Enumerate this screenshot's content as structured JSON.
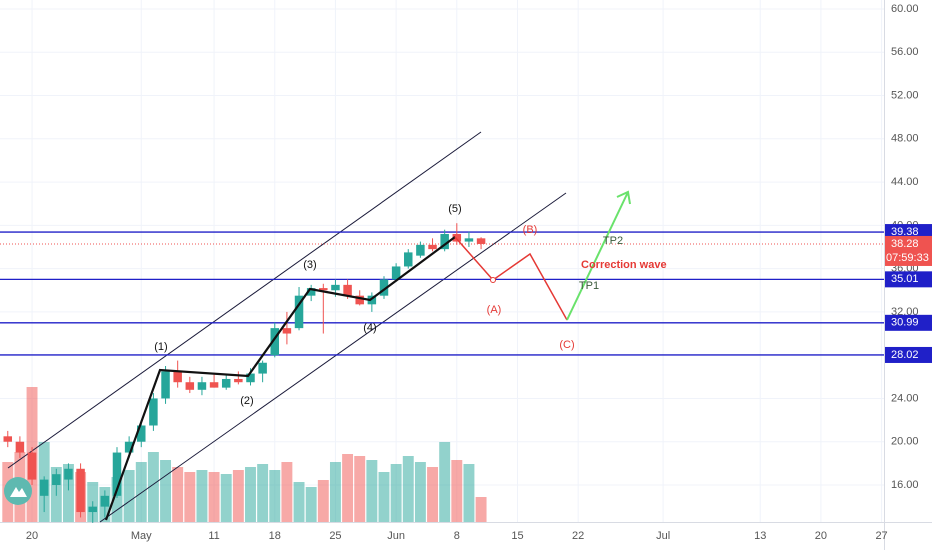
{
  "chart_data": {
    "type": "candlestick",
    "x": [
      -2,
      -1,
      0,
      1,
      2,
      3,
      4,
      5,
      6,
      7,
      8,
      9,
      10,
      11,
      12,
      13,
      14,
      15,
      16,
      17,
      18,
      19,
      20,
      21,
      22,
      23,
      24,
      25,
      26,
      27,
      28,
      29,
      30,
      31,
      32,
      33,
      34,
      35,
      36,
      37
    ],
    "series": [
      {
        "up_color": "#26a69a",
        "down_color": "#ef5350",
        "open": [
          20.5,
          20,
          19,
          15,
          16,
          16.5,
          17.5,
          13.5,
          14,
          15,
          19,
          20,
          21.5,
          24,
          26.5,
          25.5,
          24.8,
          25.5,
          25,
          25.8,
          25.5,
          26.3,
          28,
          30.5,
          30.5,
          33.5,
          34.2,
          34,
          34.5,
          33.5,
          32.7,
          33.5,
          35,
          36.2,
          37.2,
          38.2,
          37.8,
          39.2,
          38.5,
          38.8
        ],
        "high": [
          21,
          20.5,
          19.5,
          16.8,
          17.5,
          18,
          18,
          14.5,
          15.5,
          19.5,
          20.5,
          22,
          24.5,
          27,
          27.5,
          26,
          26,
          26.2,
          26.3,
          26.5,
          26.8,
          27.5,
          31,
          32,
          34.3,
          34.5,
          34.6,
          35,
          35,
          34,
          33.8,
          35.3,
          36.5,
          37.8,
          38.5,
          38.8,
          39.6,
          40.2,
          39.4,
          38.9
        ],
        "low": [
          19.5,
          18.5,
          16,
          13.5,
          15,
          15.5,
          13,
          12.5,
          13,
          14.8,
          18.5,
          19.5,
          21,
          23.5,
          25,
          24.5,
          24.3,
          25,
          24.8,
          25.3,
          25.2,
          25.5,
          27.8,
          29,
          30.3,
          33,
          30,
          33.4,
          33.2,
          32.6,
          32,
          33.2,
          34.8,
          36,
          37,
          37.6,
          37.6,
          38.2,
          38,
          37.8
        ],
        "close": [
          20,
          19,
          16.5,
          16.5,
          17,
          17.5,
          13.5,
          14,
          15,
          19,
          20,
          21.5,
          24,
          26.5,
          25.5,
          24.8,
          25.5,
          25,
          25.8,
          25.5,
          26.3,
          27.3,
          30.5,
          30,
          33.5,
          34.2,
          34,
          34.5,
          33.5,
          32.7,
          33.5,
          35,
          36.2,
          37.5,
          38.2,
          37.8,
          39.2,
          38.5,
          38.8,
          38.28
        ],
        "volume": [
          60,
          70,
          135,
          80,
          55,
          58,
          50,
          40,
          35,
          45,
          52,
          60,
          70,
          62,
          55,
          50,
          52,
          50,
          48,
          52,
          55,
          58,
          52,
          60,
          40,
          35,
          42,
          60,
          68,
          66,
          62,
          50,
          58,
          66,
          60,
          55,
          80,
          62,
          58,
          25
        ]
      }
    ],
    "xlim": [
      -2.64,
      70.2
    ],
    "ylim": [
      12.58,
      60.83
    ],
    "xticks": [
      {
        "value": 0,
        "label": "20"
      },
      {
        "value": 9,
        "label": "May"
      },
      {
        "value": 15,
        "label": "11"
      },
      {
        "value": 20,
        "label": "18"
      },
      {
        "value": 25,
        "label": "25"
      },
      {
        "value": 30,
        "label": "Jun"
      },
      {
        "value": 35,
        "label": "8"
      },
      {
        "value": 40,
        "label": "15"
      },
      {
        "value": 45,
        "label": "22"
      },
      {
        "value": 52,
        "label": "Jul"
      },
      {
        "value": 60,
        "label": "13"
      },
      {
        "value": 65,
        "label": "20"
      },
      {
        "value": 70,
        "label": "27"
      }
    ],
    "yticks": [
      {
        "value": 16,
        "label": "16.00"
      },
      {
        "value": 20,
        "label": "20.00"
      },
      {
        "value": 24,
        "label": "24.00"
      },
      {
        "value": 28,
        "label": "28.00"
      },
      {
        "value": 32,
        "label": "32.00"
      },
      {
        "value": 36,
        "label": "36.00"
      },
      {
        "value": 40,
        "label": "40.00"
      },
      {
        "value": 44,
        "label": "44.00"
      },
      {
        "value": 48,
        "label": "48.00"
      },
      {
        "value": 52,
        "label": "52.00"
      },
      {
        "value": 56,
        "label": "56.00"
      },
      {
        "value": 60,
        "label": "60.00"
      }
    ],
    "grid": true,
    "levels": [
      39.38,
      35.01,
      30.99,
      28.02
    ],
    "level_color": "#2020c8",
    "last_price": 38.28,
    "countdown": "07:59:33",
    "annotations": [
      "(1)",
      "(2)",
      "(3)",
      "(4)",
      "(5)",
      "(A)",
      "(B)",
      "(C)",
      "Correction wave",
      "TP1",
      "TP2"
    ]
  }
}
